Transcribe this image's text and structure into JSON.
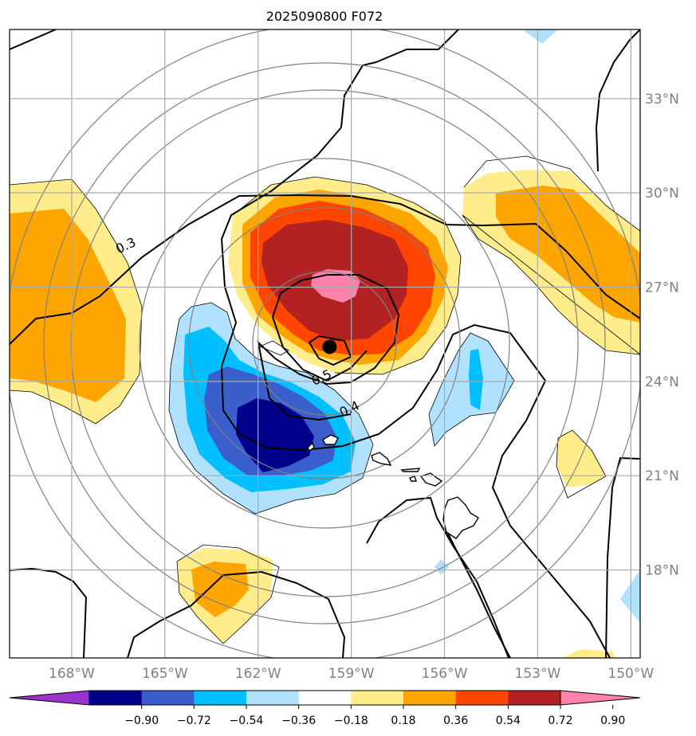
{
  "chart_data": {
    "type": "contour-map",
    "title": "2025090800 F072",
    "map": {
      "lon_range": [
        -170,
        -149.7
      ],
      "lat_range": [
        15.2,
        35.2
      ],
      "x_ticks": [
        {
          "value": -168,
          "label": "168°W"
        },
        {
          "value": -165,
          "label": "165°W"
        },
        {
          "value": -162,
          "label": "162°W"
        },
        {
          "value": -159,
          "label": "159°W"
        },
        {
          "value": -156,
          "label": "156°W"
        },
        {
          "value": -153,
          "label": "153°W"
        },
        {
          "value": -150,
          "label": "150°W"
        }
      ],
      "y_ticks": [
        {
          "value": 18,
          "label": "18°N"
        },
        {
          "value": 21,
          "label": "21°N"
        },
        {
          "value": 24,
          "label": "24°N"
        },
        {
          "value": 27,
          "label": "27°N"
        },
        {
          "value": 30,
          "label": "30°N"
        },
        {
          "value": 33,
          "label": "33°N"
        }
      ],
      "grid": true,
      "center_marker": {
        "lon": -159.7,
        "lat": 25.1
      },
      "range_rings_deg": [
        3,
        6,
        9,
        12,
        15,
        18
      ]
    },
    "contour_labels": [
      {
        "text": "0.3",
        "lon": -166.2,
        "lat": 28.2
      },
      {
        "text": "0.5",
        "lon": -159.9,
        "lat": 24.0
      },
      {
        "text": "0.4",
        "lon": -159.0,
        "lat": 23.0
      }
    ],
    "colorbar": {
      "levels": [
        -0.9,
        -0.72,
        -0.54,
        -0.36,
        -0.18,
        0.18,
        0.36,
        0.54,
        0.72,
        0.9
      ],
      "tick_labels": [
        "−0.90",
        "−0.72",
        "−0.54",
        "−0.36",
        "−0.18",
        "0.18",
        "0.36",
        "0.54",
        "0.72",
        "0.90"
      ],
      "colors": [
        "#9a32cd",
        "#00008b",
        "#3a5fcd",
        "#00bfff",
        "#b0e2ff",
        "#ffffff",
        "#ffec8b",
        "#ffa500",
        "#ff4500",
        "#b22222",
        "#ff82ab"
      ],
      "extend": "both"
    }
  }
}
